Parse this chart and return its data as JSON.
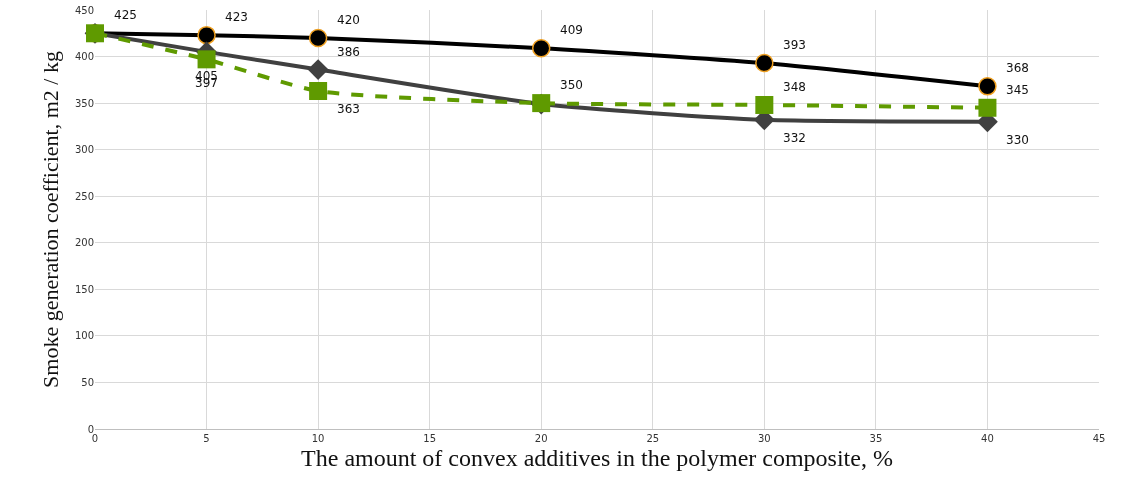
{
  "chart_data": {
    "type": "line",
    "xlabel": "The amount of convex additives in the polymer composite, %",
    "ylabel": "Smoke generation coefficient, m2 / kg",
    "x": [
      0,
      5,
      10,
      20,
      30,
      40
    ],
    "series": [
      {
        "color": "#000000",
        "marker": "circle",
        "line_style": "solid",
        "values": [
          425,
          423,
          420,
          409,
          393,
          368
        ],
        "value_labels": [
          "425",
          "423",
          "420",
          "409",
          "393",
          "368"
        ]
      },
      {
        "color": "#404040",
        "marker": "diamond",
        "line_style": "solid",
        "values": [
          425,
          405,
          386,
          349,
          332,
          330
        ],
        "value_labels": [
          null,
          "405",
          "386",
          null,
          "332",
          "330"
        ]
      },
      {
        "color": "#5f9a00",
        "marker": "square",
        "line_style": "dashed",
        "values": [
          425,
          397,
          363,
          350,
          348,
          345
        ],
        "value_labels": [
          null,
          "397",
          "363",
          "350",
          "348",
          "345"
        ]
      }
    ],
    "xlim": [
      0,
      45
    ],
    "xticks": [
      0,
      5,
      10,
      15,
      20,
      25,
      30,
      35,
      40,
      45
    ],
    "ylim": [
      0,
      450
    ],
    "yticks": [
      0,
      50,
      100,
      150,
      200,
      250,
      300,
      350,
      400,
      450
    ],
    "grid": true,
    "legend": false
  }
}
